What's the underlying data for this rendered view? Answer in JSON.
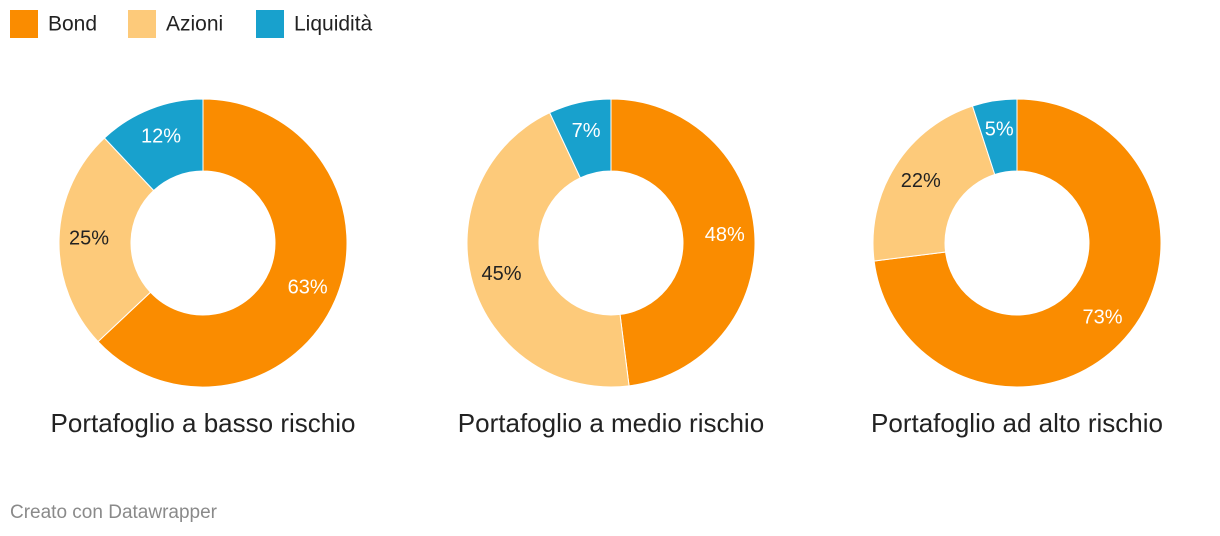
{
  "chart_data": [
    {
      "type": "pie",
      "title": "Portafoglio a basso rischio",
      "categories": [
        "Bond",
        "Azioni",
        "Liquidità"
      ],
      "values": [
        63,
        25,
        12
      ],
      "value_labels": [
        "63%",
        "25%",
        "12%"
      ],
      "colors": [
        "#fa8c00",
        "#fdca7a",
        "#18a1cd"
      ]
    },
    {
      "type": "pie",
      "title": "Portafoglio a medio rischio",
      "categories": [
        "Bond",
        "Azioni",
        "Liquidità"
      ],
      "values": [
        48,
        45,
        7
      ],
      "value_labels": [
        "48%",
        "45%",
        "7%"
      ],
      "colors": [
        "#fa8c00",
        "#fdca7a",
        "#18a1cd"
      ]
    },
    {
      "type": "pie",
      "title": "Portafoglio ad alto rischio",
      "categories": [
        "Bond",
        "Azioni",
        "Liquidità"
      ],
      "values": [
        73,
        22,
        5
      ],
      "value_labels": [
        "73%",
        "22%",
        "5%"
      ],
      "colors": [
        "#fa8c00",
        "#fdca7a",
        "#18a1cd"
      ]
    }
  ],
  "credit": "Creato con Datawrapper"
}
